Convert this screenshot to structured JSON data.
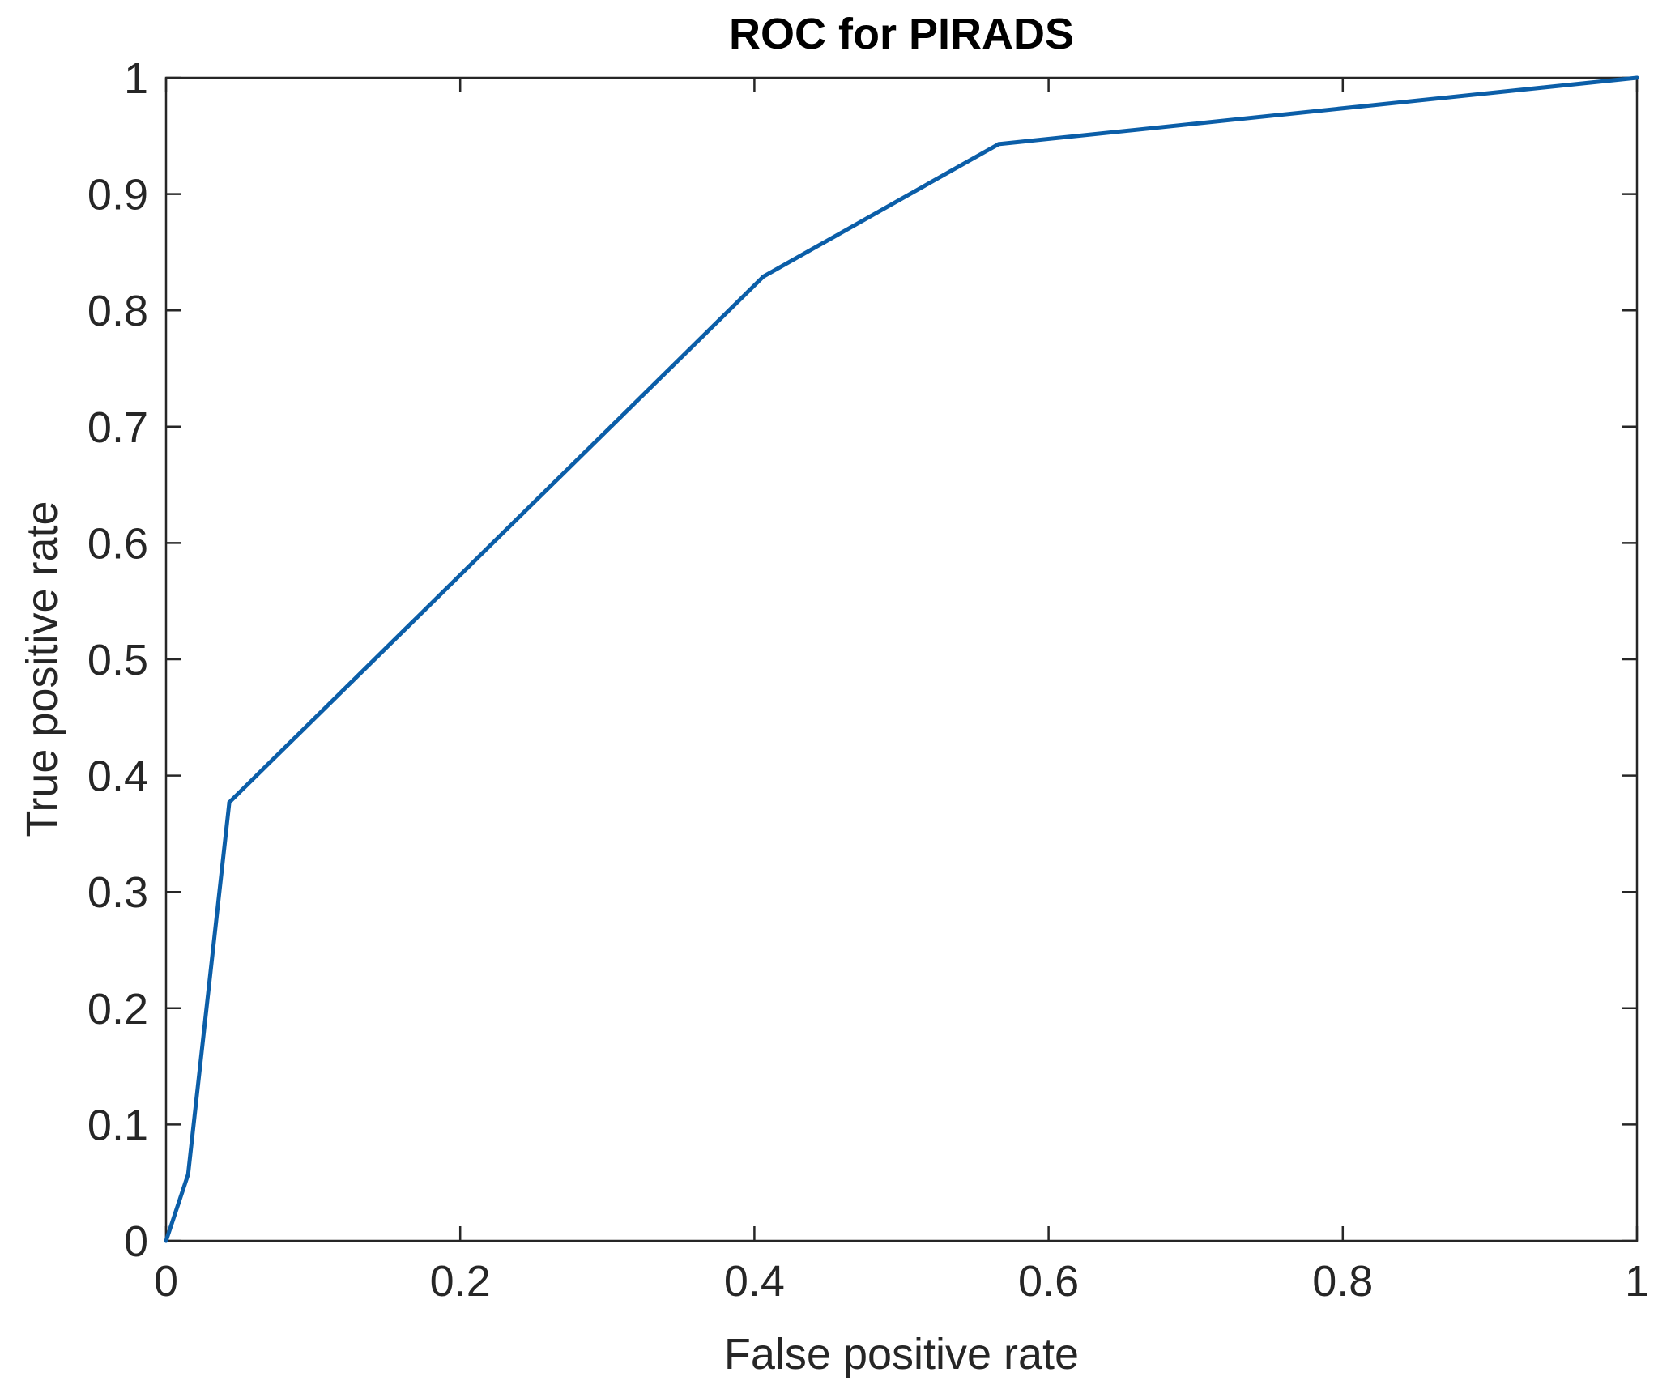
{
  "chart_data": {
    "type": "line",
    "title": "ROC for PIRADS",
    "xlabel": "False positive rate",
    "ylabel": "True positive rate",
    "xlim": [
      0,
      1
    ],
    "ylim": [
      0,
      1
    ],
    "xticks": [
      0,
      0.2,
      0.4,
      0.6,
      0.8,
      1
    ],
    "xtick_labels": [
      "0",
      "0.2",
      "0.4",
      "0.6",
      "0.8",
      "1"
    ],
    "yticks": [
      0,
      0.1,
      0.2,
      0.3,
      0.4,
      0.5,
      0.6,
      0.7,
      0.8,
      0.9,
      1
    ],
    "ytick_labels": [
      "0",
      "0.1",
      "0.2",
      "0.3",
      "0.4",
      "0.5",
      "0.6",
      "0.7",
      "0.8",
      "0.9",
      "1"
    ],
    "grid": false,
    "series": [
      {
        "color": "#0b5ea8",
        "x": [
          0,
          0.015,
          0.043,
          0.406,
          0.566,
          1
        ],
        "y": [
          0,
          0.057,
          0.377,
          0.829,
          0.943,
          1
        ]
      }
    ]
  }
}
